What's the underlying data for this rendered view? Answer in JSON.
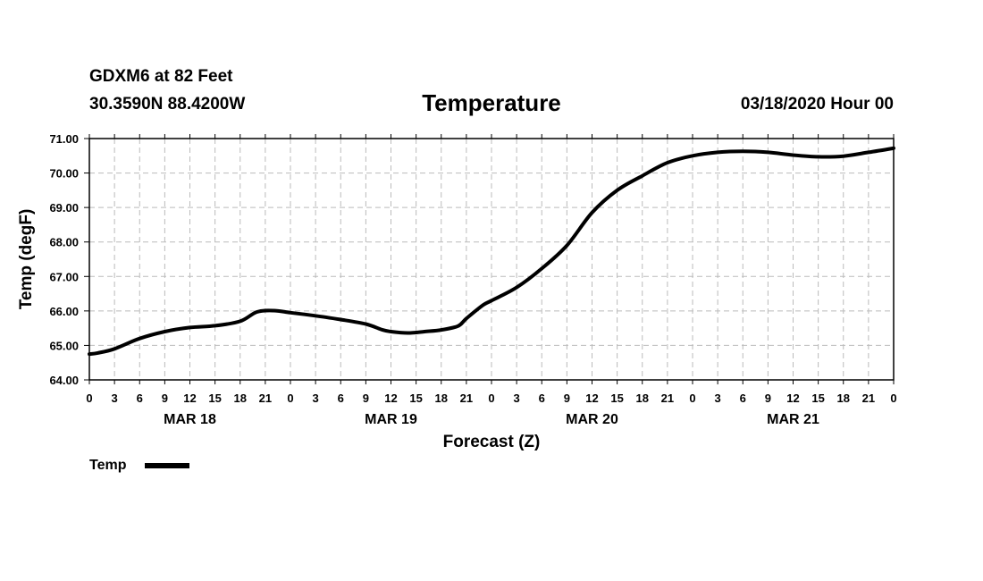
{
  "header": {
    "station": "GDXM6 at 82 Feet",
    "location": "30.3590N 88.4200W",
    "run": "03/18/2020 Hour 00"
  },
  "chart_data": {
    "type": "line",
    "title": "Temperature",
    "xlabel": "Forecast (Z)",
    "ylabel": "Temp (degF)",
    "ylim": [
      64.0,
      71.0
    ],
    "xlim": [
      0,
      96
    ],
    "y_ticks": [
      "64.00",
      "65.00",
      "66.00",
      "67.00",
      "68.00",
      "69.00",
      "70.00",
      "71.00"
    ],
    "x_tick_labels": [
      "0",
      "3",
      "6",
      "9",
      "12",
      "15",
      "18",
      "21",
      "0",
      "3",
      "6",
      "9",
      "12",
      "15",
      "18",
      "21",
      "0",
      "3",
      "6",
      "9",
      "12",
      "15",
      "18",
      "21",
      "0",
      "3",
      "6",
      "9",
      "12",
      "15",
      "18",
      "21",
      "0"
    ],
    "day_labels": [
      {
        "label": "MAR 18",
        "hour": 12
      },
      {
        "label": "MAR 19",
        "hour": 36
      },
      {
        "label": "MAR 20",
        "hour": 60
      },
      {
        "label": "MAR 21",
        "hour": 84
      }
    ],
    "grid": true,
    "legend_position": "bottom-left",
    "series": [
      {
        "name": "Temp",
        "color": "#000000",
        "x": [
          0,
          1,
          3,
          6,
          9,
          12,
          15,
          18,
          20,
          22,
          24,
          27,
          30,
          33,
          35,
          36,
          38,
          40,
          42,
          44,
          45,
          47,
          48,
          51,
          54,
          57,
          60,
          63,
          66,
          69,
          72,
          75,
          78,
          81,
          84,
          87,
          90,
          93,
          96
        ],
        "values": [
          64.75,
          64.78,
          64.9,
          65.2,
          65.4,
          65.52,
          65.57,
          65.7,
          65.97,
          66.01,
          65.95,
          65.86,
          65.75,
          65.62,
          65.45,
          65.4,
          65.36,
          65.4,
          65.45,
          65.56,
          65.78,
          66.17,
          66.3,
          66.68,
          67.23,
          67.9,
          68.85,
          69.5,
          69.92,
          70.3,
          70.5,
          70.6,
          70.63,
          70.6,
          70.52,
          70.47,
          70.49,
          70.6,
          70.72
        ]
      }
    ]
  }
}
